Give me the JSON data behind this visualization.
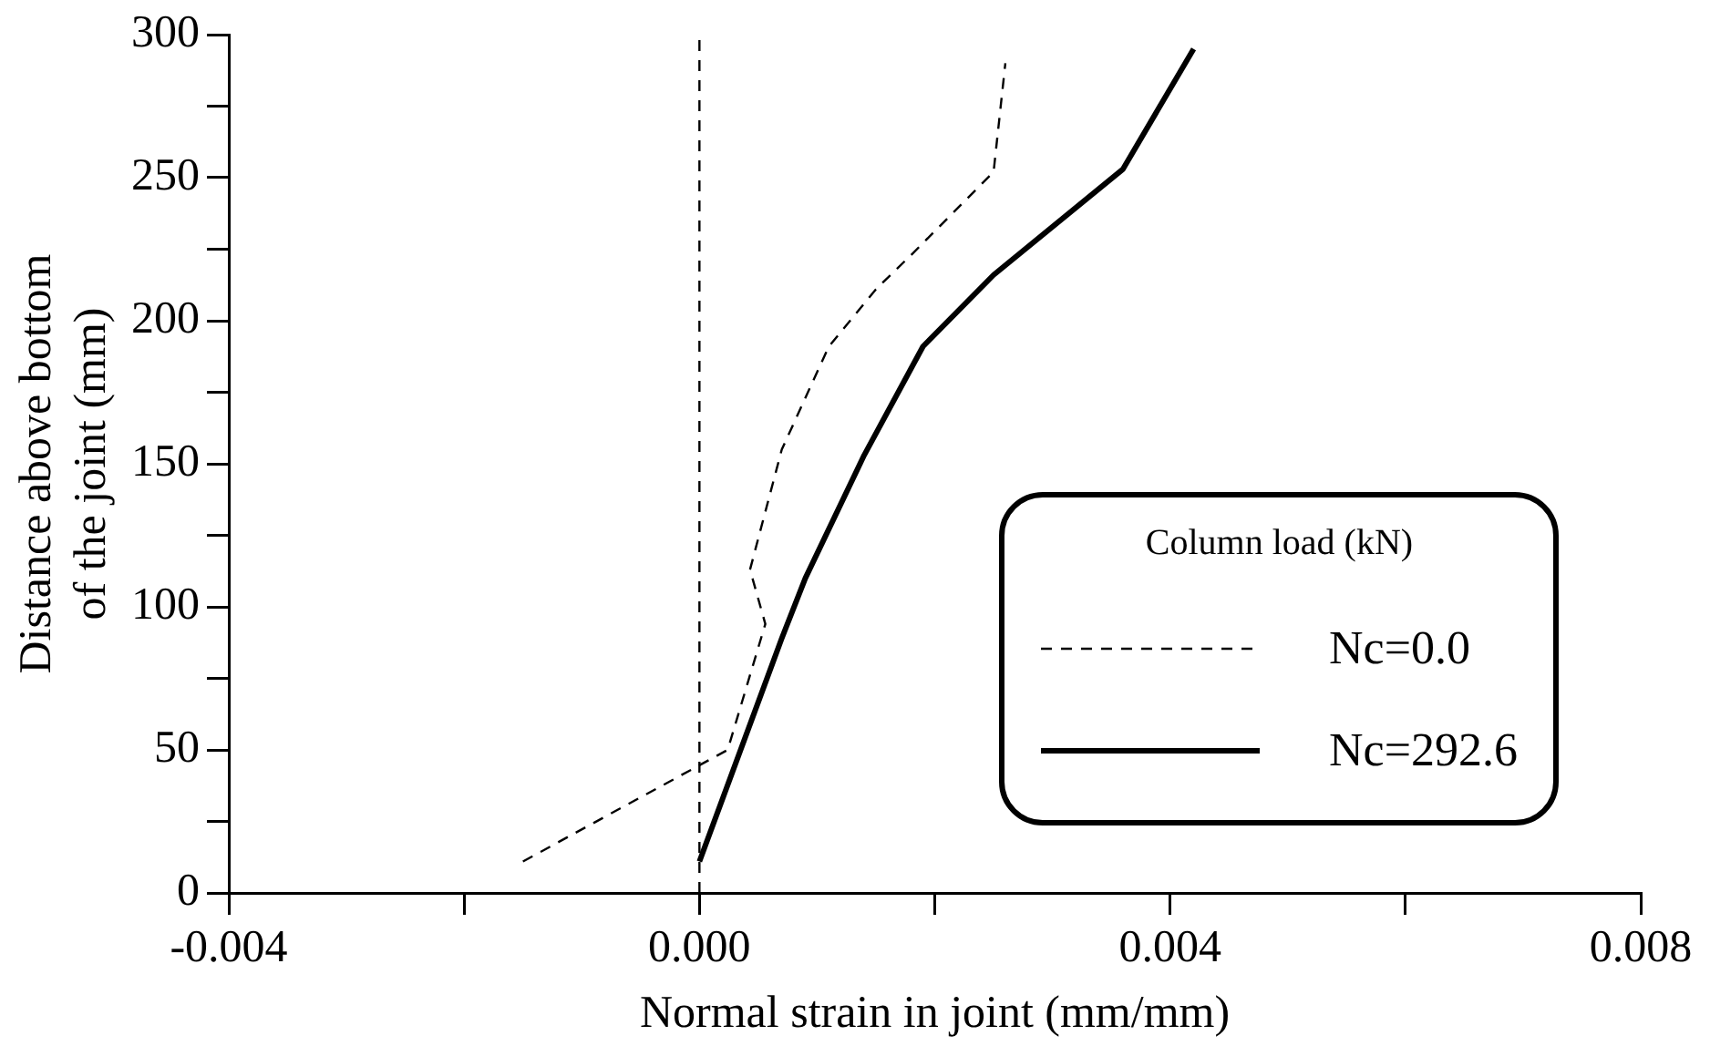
{
  "chart_data": {
    "type": "line",
    "xlabel": "Normal strain in joint (mm/mm)",
    "ylabel": "Distance above bottom of the joint (mm)",
    "legend_title": "Column load (kN)",
    "legend": "bottom right",
    "grid": false,
    "marker": "none",
    "xlim": [
      -0.004,
      0.008
    ],
    "xticks": [
      -0.004,
      {
        "value": -0.002,
        "label": null
      },
      {
        "value": 0,
        "label": "0.000"
      },
      {
        "value": 0.002,
        "label": null
      },
      0.004,
      {
        "value": 0.006,
        "label": null
      },
      0.008
    ],
    "ylim": [
      0,
      300
    ],
    "yticks": [
      0,
      {
        "value": 25,
        "label": null
      },
      50,
      {
        "value": 75,
        "label": null
      },
      100,
      {
        "value": 125,
        "label": null
      },
      150,
      {
        "value": 175,
        "label": null
      },
      200,
      {
        "value": 225,
        "label": null
      },
      250,
      {
        "value": 275,
        "label": null
      },
      300
    ],
    "ref_lines": [
      {
        "axis": "x",
        "value": 0,
        "line_style": "dashed",
        "color": "#000000"
      }
    ],
    "series": [
      {
        "name": "Nc=0.0",
        "color": "#000000",
        "line_style": "dashed",
        "x": [
          -0.0015,
          0.00024,
          0.00056,
          0.00043,
          0.0007,
          0.0011,
          0.0015,
          0.0018,
          0.0025,
          0.0026
        ],
        "values": [
          11,
          50,
          94,
          113,
          155,
          191,
          211,
          223,
          252,
          290
        ]
      },
      {
        "name": "Nc=292.6",
        "color": "#000000",
        "line_style": "solid",
        "x": [
          0,
          0.0007,
          0.0009,
          0.0014,
          0.0019,
          0.0025,
          0.0036,
          0.0042
        ],
        "values": [
          11,
          89,
          110,
          153,
          191,
          216,
          253,
          295
        ]
      }
    ]
  }
}
